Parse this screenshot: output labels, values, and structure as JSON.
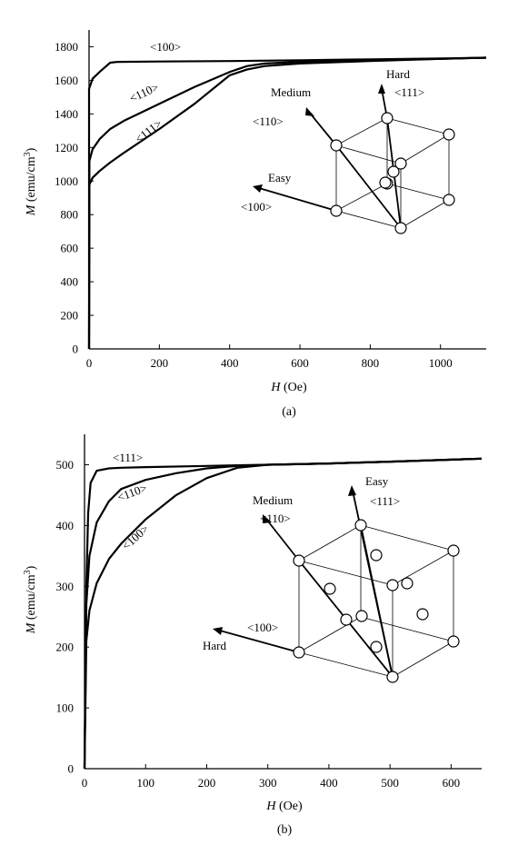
{
  "chart_data": [
    {
      "type": "line",
      "title": "",
      "caption": "(a)",
      "xlabel": {
        "symbol": "H",
        "unit": "(Oe)"
      },
      "ylabel": {
        "symbol": "M",
        "unit": "(emu/cm",
        "sup": "3",
        "close": ")"
      },
      "xlim": [
        0,
        1130
      ],
      "ylim": [
        0,
        1900
      ],
      "xticks": [
        "0",
        "200",
        "400",
        "600",
        "800",
        "1000"
      ],
      "xtick_values": [
        0,
        200,
        400,
        600,
        800,
        1000
      ],
      "yticks": [
        "0",
        "200",
        "400",
        "600",
        "800",
        "1000",
        "1200",
        "1400",
        "1600",
        "1800"
      ],
      "ytick_values": [
        0,
        200,
        400,
        600,
        800,
        1000,
        1200,
        1400,
        1600,
        1800
      ],
      "series": [
        {
          "name": "<100>",
          "x": [
            0,
            0,
            10,
            30,
            60,
            80,
            200,
            400,
            600,
            800,
            1000,
            1130
          ],
          "y": [
            0,
            1550,
            1610,
            1650,
            1705,
            1710,
            1712,
            1715,
            1720,
            1725,
            1730,
            1735
          ]
        },
        {
          "name": "<110>",
          "x": [
            0,
            1,
            10,
            30,
            60,
            100,
            200,
            300,
            400,
            450,
            500,
            600,
            800,
            1000,
            1130
          ],
          "y": [
            0,
            1120,
            1190,
            1250,
            1310,
            1360,
            1460,
            1560,
            1650,
            1685,
            1700,
            1710,
            1720,
            1728,
            1735
          ]
        },
        {
          "name": "<111>",
          "x": [
            0,
            1,
            10,
            30,
            60,
            100,
            200,
            300,
            400,
            450,
            500,
            600,
            800,
            1000,
            1130
          ],
          "y": [
            0,
            980,
            1020,
            1060,
            1110,
            1170,
            1310,
            1460,
            1630,
            1665,
            1685,
            1700,
            1715,
            1728,
            1735
          ]
        }
      ],
      "curve_labels": [
        "<100>",
        "<110>",
        "<111>"
      ],
      "inset": {
        "directions": [
          "Easy",
          "Medium",
          "Hard"
        ],
        "direction_labels": [
          "<100>",
          "<110>",
          "<111>"
        ]
      }
    },
    {
      "type": "line",
      "title": "",
      "caption": "(b)",
      "xlabel": {
        "symbol": "H",
        "unit": "(Oe)"
      },
      "ylabel": {
        "symbol": "M",
        "unit": "(emu/cm",
        "sup": "3",
        "close": ")"
      },
      "xlim": [
        0,
        650
      ],
      "ylim": [
        0,
        550
      ],
      "xticks": [
        "0",
        "100",
        "200",
        "300",
        "400",
        "500",
        "600"
      ],
      "xtick_values": [
        0,
        100,
        200,
        300,
        400,
        500,
        600
      ],
      "yticks": [
        "0",
        "100",
        "200",
        "300",
        "400",
        "500"
      ],
      "ytick_values": [
        0,
        100,
        200,
        300,
        400,
        500
      ],
      "series": [
        {
          "name": "<111>",
          "x": [
            0,
            3,
            6,
            10,
            20,
            40,
            60,
            100,
            200,
            300,
            400,
            500,
            650
          ],
          "y": [
            0,
            300,
            420,
            470,
            490,
            494,
            495,
            496,
            498,
            500,
            502,
            505,
            510
          ]
        },
        {
          "name": "<110>",
          "x": [
            0,
            3,
            8,
            20,
            40,
            60,
            100,
            150,
            200,
            250,
            300,
            400,
            500,
            650
          ],
          "y": [
            0,
            270,
            350,
            405,
            440,
            460,
            475,
            486,
            494,
            498,
            500,
            502,
            505,
            510
          ]
        },
        {
          "name": "<100>",
          "x": [
            0,
            3,
            8,
            20,
            40,
            60,
            100,
            150,
            200,
            250,
            300,
            400,
            500,
            650
          ],
          "y": [
            0,
            210,
            260,
            305,
            345,
            370,
            410,
            450,
            478,
            495,
            500,
            502,
            505,
            510
          ]
        }
      ],
      "curve_labels": [
        "<111>",
        "<110>",
        "<100>"
      ],
      "inset": {
        "directions": [
          "Easy",
          "Medium",
          "Hard"
        ],
        "direction_labels": [
          "<111>",
          "<110>",
          "<100>"
        ]
      }
    }
  ]
}
